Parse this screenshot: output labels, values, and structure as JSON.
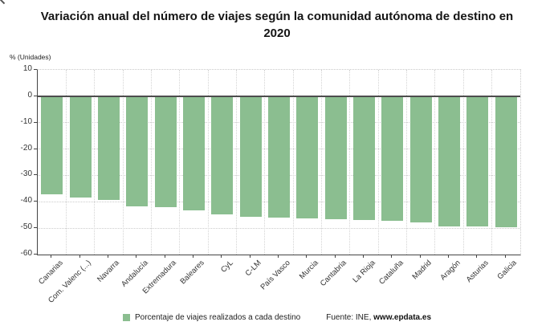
{
  "header": {
    "title_line1": "Variación anual del número de viajes según la comunidad autónoma de destino en",
    "title_line2": "2020"
  },
  "axis": {
    "y_label": "% (Unidades)",
    "y_ticks": [
      10,
      0,
      -10,
      -20,
      -30,
      -40,
      -50,
      -60
    ]
  },
  "chart_data": {
    "type": "bar",
    "title": "Variación anual del número de viajes según la comunidad autónoma de destino en 2020",
    "xlabel": "",
    "ylabel": "% (Unidades)",
    "ylim": [
      -60,
      10
    ],
    "grid": true,
    "legend_position": "bottom",
    "bar_color": "#8bbe90",
    "zero_line_color": "#4d4d4d",
    "categories": [
      "Canarias",
      "Com. Valenc (...)",
      "Navarra",
      "Andalucía",
      "Extremadura",
      "Baleares",
      "CyL",
      "C-LM",
      "País Vasco",
      "Murcia",
      "Cantabria",
      "La Rioja",
      "Cataluña",
      "Madrid",
      "Aragón",
      "Asturias",
      "Galicia"
    ],
    "values": [
      -37.3,
      -38.5,
      -39.3,
      -41.8,
      -42.0,
      -43.4,
      -44.9,
      -45.6,
      -45.9,
      -46.2,
      -46.5,
      -46.9,
      -47.1,
      -47.7,
      -49.3,
      -49.4,
      -49.7
    ],
    "series_name": "Porcentaje de viajes realizados a cada destino"
  },
  "legend": {
    "label": "Porcentaje de viajes realizados a cada destino",
    "swatch_color": "#8bbe90"
  },
  "footer": {
    "source_prefix": "Fuente: INE, ",
    "source_link": "www.epdata.es"
  }
}
